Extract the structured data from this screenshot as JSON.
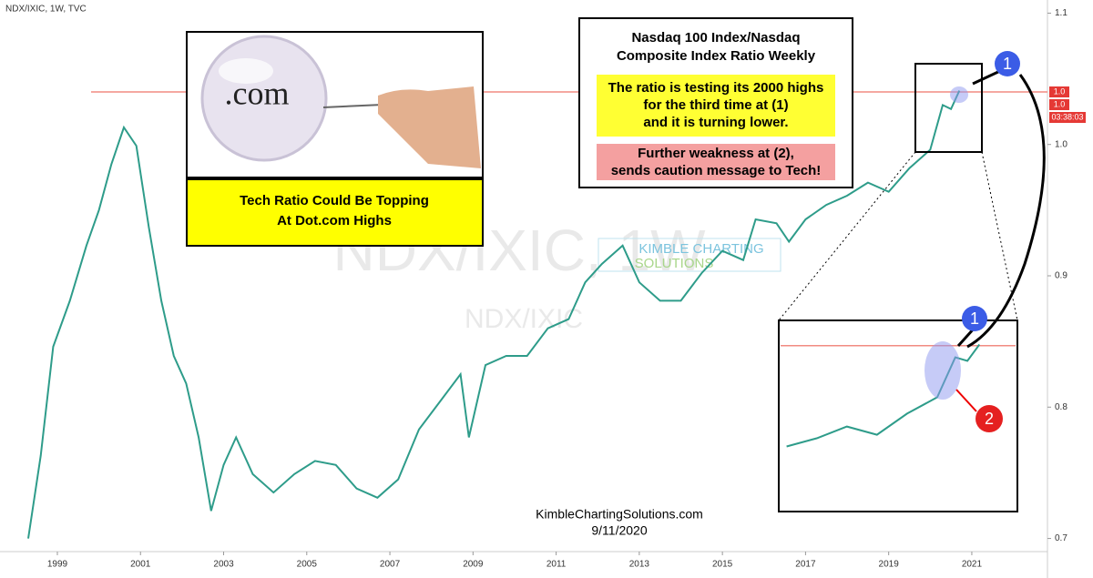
{
  "chart_data": {
    "type": "line",
    "header": "NDX/IXIC, 1W, TVC",
    "watermark": "NDX/IXIC, 1W",
    "watermark_small": "NDX/IXIC",
    "logo": [
      "KIMBLE CHARTING",
      "SOLUTIONS"
    ],
    "image_text": ".com",
    "image_caption": [
      "Tech Ratio Could Be Topping",
      "At Dot.com Highs"
    ],
    "callout_title": [
      "Nasdaq 100 Index/Nasdaq",
      "Composite Index Ratio Weekly"
    ],
    "callout_yellow": [
      "The ratio is testing its 2000 highs",
      "for the third time at (1)",
      "and it is turning lower."
    ],
    "callout_pink": [
      "Further weakness at (2),",
      "sends caution message to Tech!"
    ],
    "markers": [
      "1",
      "1",
      "2"
    ],
    "footer": [
      "KimbleChartingSolutions.com",
      "9/11/2020"
    ],
    "price_labels": [
      "1.0",
      "1.0",
      "03:38:03"
    ],
    "reference_line": 1.04,
    "series": [
      {
        "color": "#2e9c8a",
        "x": [
          1998.3,
          1998.6,
          1998.9,
          1999.3,
          1999.7,
          2000.0,
          2000.3,
          2000.6,
          2000.9,
          2001.2,
          2001.5,
          2001.8,
          2002.1,
          2002.4,
          2002.7,
          2003.0,
          2003.3,
          2003.7,
          2004.2,
          2004.7,
          2005.2,
          2005.7,
          2006.2,
          2006.7,
          2007.2,
          2007.7,
          2008.2,
          2008.7,
          2008.9,
          2009.3,
          2009.8,
          2010.3,
          2010.8,
          2011.3,
          2011.7,
          2012.1,
          2012.6,
          2013.0,
          2013.5,
          2014.0,
          2014.5,
          2015.0,
          2015.5,
          2015.8,
          2016.3,
          2016.6,
          2017.0,
          2017.5,
          2018.0,
          2018.5,
          2019.0,
          2019.5,
          2020.0,
          2020.3,
          2020.5,
          2020.7
        ],
        "values": [
          0.7,
          0.763,
          0.846,
          0.881,
          0.923,
          0.95,
          0.985,
          1.013,
          0.999,
          0.937,
          0.881,
          0.839,
          0.818,
          0.777,
          0.721,
          0.756,
          0.777,
          0.749,
          0.735,
          0.749,
          0.759,
          0.756,
          0.738,
          0.731,
          0.745,
          0.783,
          0.804,
          0.825,
          0.777,
          0.832,
          0.839,
          0.839,
          0.86,
          0.867,
          0.895,
          0.909,
          0.923,
          0.895,
          0.881,
          0.881,
          0.902,
          0.919,
          0.912,
          0.943,
          0.94,
          0.926,
          0.943,
          0.954,
          0.961,
          0.971,
          0.964,
          0.982,
          0.996,
          1.03,
          1.027,
          1.041
        ]
      }
    ],
    "xlim": [
      1997.62,
      2022.82
    ],
    "xticks": [
      1999,
      2001,
      2003,
      2005,
      2007,
      2009,
      2011,
      2013,
      2015,
      2017,
      2019,
      2021
    ],
    "ylim": [
      0.69,
      1.11
    ],
    "yticks": [
      0.7,
      0.8,
      0.9,
      {
        "value": 1,
        "label": "1.0"
      },
      1.1
    ],
    "inset_xlim": [
      2017.4,
      2021.3
    ],
    "inset_ylim": [
      0.9,
      1.06
    ],
    "grid": false
  }
}
